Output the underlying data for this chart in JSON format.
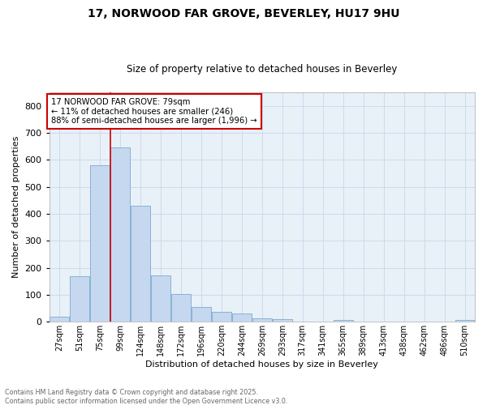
{
  "title": "17, NORWOOD FAR GROVE, BEVERLEY, HU17 9HU",
  "subtitle": "Size of property relative to detached houses in Beverley",
  "xlabel": "Distribution of detached houses by size in Beverley",
  "ylabel": "Number of detached properties",
  "footer_line1": "Contains HM Land Registry data © Crown copyright and database right 2025.",
  "footer_line2": "Contains public sector information licensed under the Open Government Licence v3.0.",
  "categories": [
    "27sqm",
    "51sqm",
    "75sqm",
    "99sqm",
    "124sqm",
    "148sqm",
    "172sqm",
    "196sqm",
    "220sqm",
    "244sqm",
    "269sqm",
    "293sqm",
    "317sqm",
    "341sqm",
    "365sqm",
    "389sqm",
    "413sqm",
    "438sqm",
    "462sqm",
    "486sqm",
    "510sqm"
  ],
  "values": [
    20,
    168,
    580,
    645,
    430,
    172,
    103,
    55,
    38,
    30,
    14,
    9,
    0,
    0,
    6,
    0,
    0,
    0,
    0,
    0,
    6
  ],
  "bar_color": "#c5d8f0",
  "bar_edge_color": "#7aaad0",
  "vline_x_index": 2,
  "vline_color": "#cc0000",
  "annotation_text": "17 NORWOOD FAR GROVE: 79sqm\n← 11% of detached houses are smaller (246)\n88% of semi-detached houses are larger (1,996) →",
  "annotation_box_color": "#ffffff",
  "annotation_box_edge_color": "#cc0000",
  "ylim": [
    0,
    850
  ],
  "yticks": [
    0,
    100,
    200,
    300,
    400,
    500,
    600,
    700,
    800
  ],
  "grid_color": "#c8d8e8",
  "background_color": "#ffffff",
  "plot_bg_color": "#e8f0f8",
  "title_fontsize": 10,
  "subtitle_fontsize": 8.5
}
